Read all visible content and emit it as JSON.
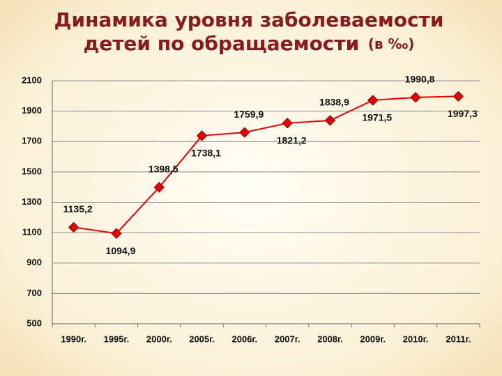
{
  "chart_data": {
    "type": "line",
    "title": [
      "Динамика уровня заболеваемости",
      "детей по обращаемости",
      "(в ‰)"
    ],
    "categories": [
      "1990г.",
      "1995г.",
      "2000г.",
      "2005г.",
      "2006г.",
      "2007г.",
      "2008г.",
      "2009г.",
      "2010г.",
      "2011г."
    ],
    "values": [
      1135.2,
      1094.9,
      1398.5,
      1738.1,
      1759.9,
      1821.2,
      1838.9,
      1971.5,
      1990.8,
      1997.3
    ],
    "value_labels": [
      "1135,2",
      "1094,9",
      "1398,5",
      "1738,1",
      "1759,9",
      "1821,2",
      "1838,9",
      "1971,5",
      "1990,8",
      "1997,3"
    ],
    "color": "#e60000",
    "ylim": [
      500,
      2100
    ],
    "yticks": [
      500,
      700,
      900,
      1100,
      1300,
      1500,
      1700,
      1900,
      2100
    ],
    "grid": true
  }
}
